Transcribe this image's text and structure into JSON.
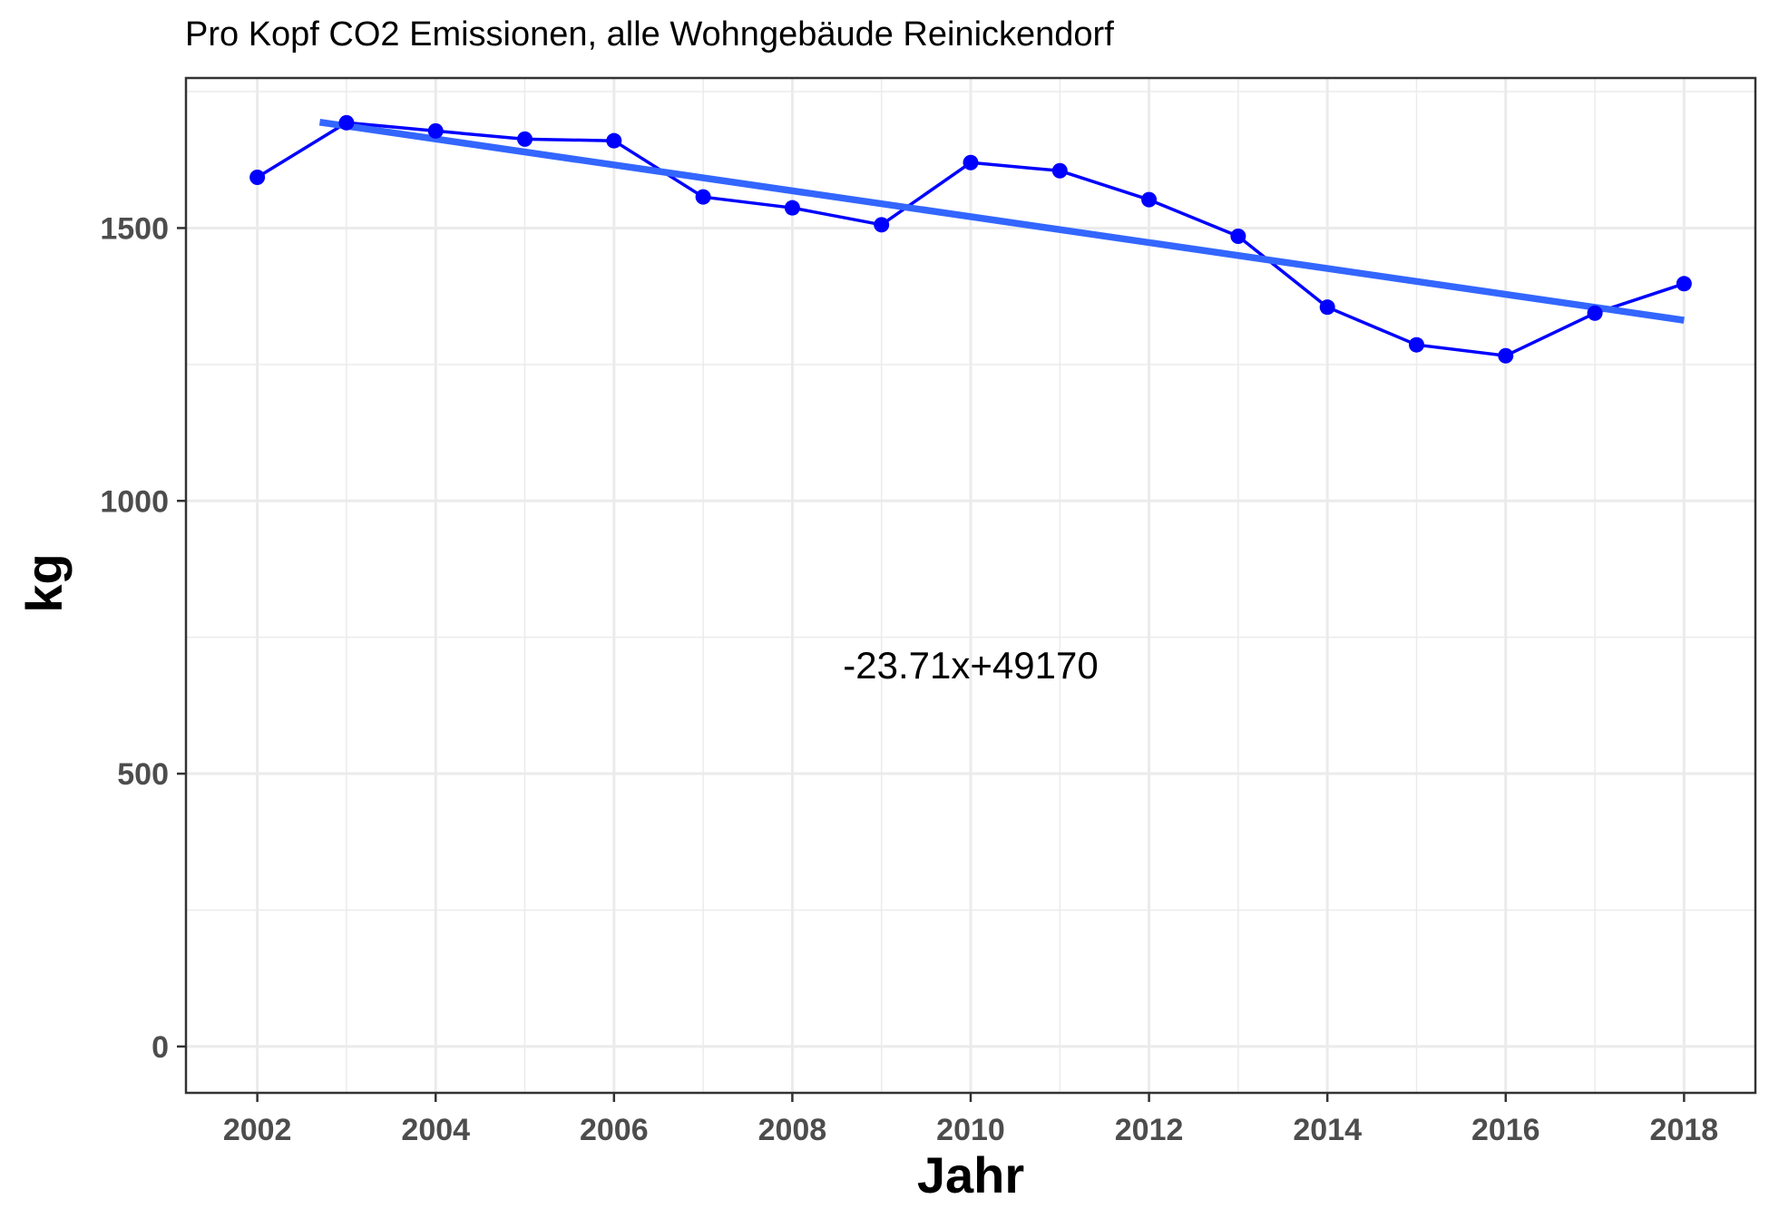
{
  "chart_data": {
    "type": "line",
    "title": "Pro Kopf CO2 Emissionen, alle Wohngebäude Reinickendorf",
    "xlabel": "Jahr",
    "ylabel": "kg",
    "xlim": [
      2001.2,
      2018.8
    ],
    "ylim": [
      -85,
      1775
    ],
    "x_ticks": [
      2002,
      2004,
      2006,
      2008,
      2010,
      2012,
      2014,
      2016,
      2018
    ],
    "y_ticks": [
      0,
      500,
      1000,
      1500
    ],
    "grid": true,
    "legend": "none",
    "series": [
      {
        "color": "#0000ff",
        "x": [
          2002,
          2003,
          2004,
          2005,
          2006,
          2007,
          2008,
          2009,
          2010,
          2011,
          2012,
          2013,
          2014,
          2015,
          2016,
          2017,
          2018
        ],
        "y": [
          1593,
          1693,
          1678,
          1663,
          1660,
          1557,
          1537,
          1506,
          1620,
          1605,
          1552,
          1485,
          1355,
          1286,
          1266,
          1344,
          1398
        ]
      }
    ],
    "trend": {
      "color": "#3366ff",
      "x": [
        2002.7,
        2018
      ],
      "y": [
        1694,
        1331
      ]
    },
    "annotation": "-23.71x+49170"
  }
}
